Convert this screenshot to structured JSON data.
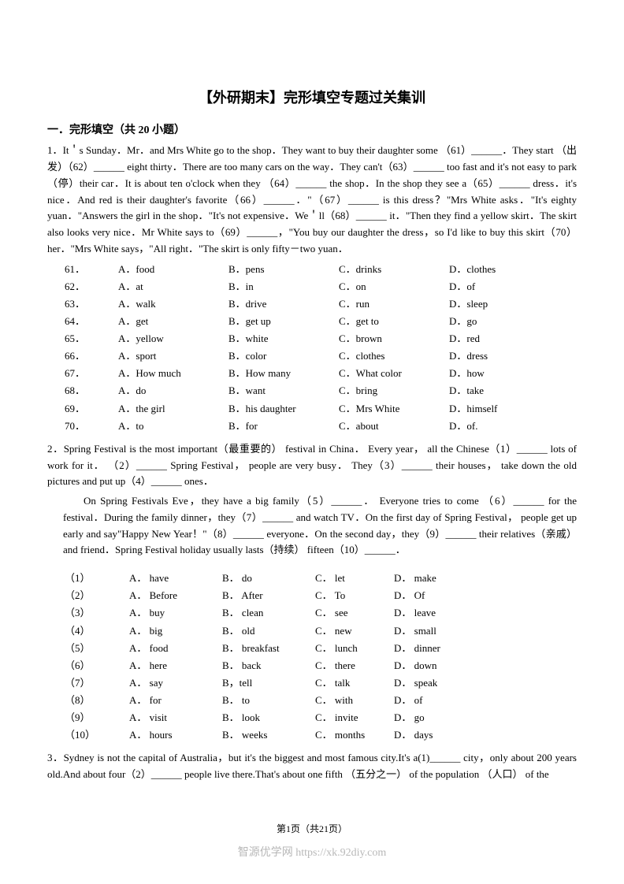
{
  "title": "【外研期末】完形填空专题过关集训",
  "section_title": "一．完形填空（共 20 小题）",
  "q1": {
    "num": "1．",
    "passage": "It＇s Sunday．Mr．and Mrs White go to the shop．They want to buy their daughter some （61）______．They start （出发）（62）______ eight thirty．There are too many cars on the way．They can't（63）______ too fast and it's not easy to park（停）their car．It is about ten o'clock when they （64）______ the shop．In the shop they see a（65）______ dress．it's nice．And red is their daughter's favorite（66）______．\"（67）______ is this dress？\"Mrs White asks．\"It's eighty yuan．\"Answers the girl in the shop．\"It's not expensive．We＇ll（68）______ it．\"Then they find a yellow skirt．The skirt also looks very nice．Mr White says to（69）______，\"You buy our daughter the dress，so I'd like to buy this skirt（70）her．\"Mrs White says，\"All right．\"The skirt is only fifty－two yuan．",
    "options": [
      {
        "n": "61．",
        "a": "A．food",
        "b": "B．pens",
        "c": "C．drinks",
        "d": "D．clothes"
      },
      {
        "n": "62．",
        "a": "A．at",
        "b": "B．in",
        "c": "C．on",
        "d": "D．of"
      },
      {
        "n": "63．",
        "a": "A．walk",
        "b": "B．drive",
        "c": "C．run",
        "d": "D．sleep"
      },
      {
        "n": "64．",
        "a": "A．get",
        "b": "B．get up",
        "c": "C．get to",
        "d": "D．go"
      },
      {
        "n": "65．",
        "a": "A．yellow",
        "b": "B．white",
        "c": "C．brown",
        "d": "D．red"
      },
      {
        "n": "66．",
        "a": "A．sport",
        "b": "B．color",
        "c": "C．clothes",
        "d": "D．dress"
      },
      {
        "n": "67．",
        "a": "A．How much",
        "b": "B．How many",
        "c": "C．What color",
        "d": "D．how"
      },
      {
        "n": "68．",
        "a": "A．do",
        "b": "B．want",
        "c": "C．bring",
        "d": "D．take"
      },
      {
        "n": "69．",
        "a": "A．the girl",
        "b": "B．his daughter",
        "c": "C．Mrs White",
        "d": "D．himself"
      },
      {
        "n": "70．",
        "a": "A．to",
        "b": "B．for",
        "c": "C．about",
        "d": "D．of."
      }
    ]
  },
  "q2": {
    "num": "2．",
    "p1": "Spring Festival is the most important（最重要的） festival in China． Every year， all the Chinese（1）______ lots of work for it． （2）______ Spring Festival， people are very busy． They（3）______ their houses， take down the old pictures and put up（4）______ ones．",
    "p2": "On Spring Festivals Eve，they have a big family（5）______． Everyone tries to come （6）______ for the festival．During the family dinner，they（7）______ and watch TV．On the first day of Spring Festival， people get up early and say\"Happy New Year！\"（8）______ everyone．On the second day，they（9）______ their relatives（亲戚） and friend．Spring Festival holiday usually lasts（持续） fifteen（10）______．",
    "options": [
      {
        "n": "（1）",
        "a": "A． have",
        "b": "B． do",
        "c": "C． let",
        "d": "D． make"
      },
      {
        "n": "（2）",
        "a": "A． Before",
        "b": "B． After",
        "c": "C． To",
        "d": "D． Of"
      },
      {
        "n": "（3）",
        "a": "A． buy",
        "b": "B． clean",
        "c": "C． see",
        "d": "D． leave"
      },
      {
        "n": "（4）",
        "a": "A． big",
        "b": "B． old",
        "c": "C． new",
        "d": "D． small"
      },
      {
        "n": "（5）",
        "a": "A． food",
        "b": "B． breakfast",
        "c": "C． lunch",
        "d": "D． dinner"
      },
      {
        "n": "（6）",
        "a": "A． here",
        "b": "B． back",
        "c": "C． there",
        "d": "D． down"
      },
      {
        "n": "（7）",
        "a": "A． say",
        "b": "B，tell",
        "c": "C． talk",
        "d": "D． speak"
      },
      {
        "n": "（8）",
        "a": "A． for",
        "b": "B． to",
        "c": "C． with",
        "d": "D． of"
      },
      {
        "n": "（9）",
        "a": "A． visit",
        "b": "B． look",
        "c": "C． invite",
        "d": "D． go"
      },
      {
        "n": "（10）",
        "a": "A． hours",
        "b": "B． weeks",
        "c": "C． months",
        "d": "D． days"
      }
    ]
  },
  "q3": {
    "num": "3．",
    "passage": "Sydney is not the capital of Australia，but it's the biggest and most famous city.It's a(1)______ city，only about 200 years old.And about four（2）______ people live there.That's about one fifth （五分之一） of the population （人口） of the"
  },
  "footer_page": "第1页（共21页）",
  "footer_watermark": "智源优学网 https://xk.92diy.com"
}
